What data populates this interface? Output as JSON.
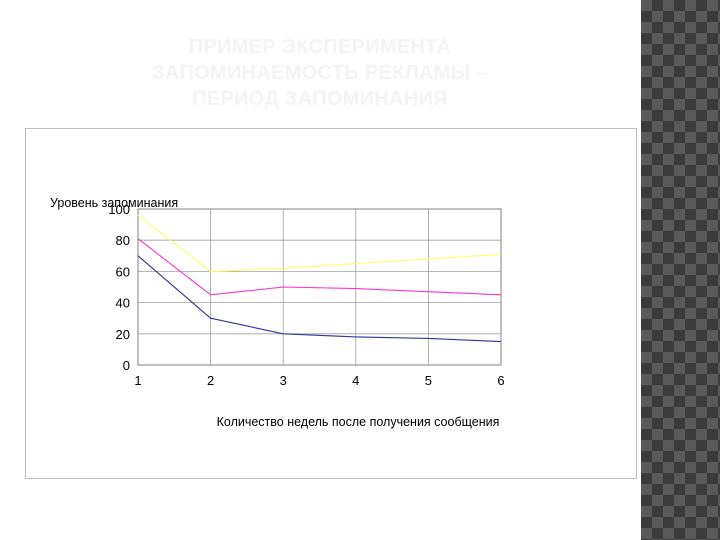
{
  "slide": {
    "title": "ПРИМЕР ЭКСПЕРИМЕНТА\nЗАПОМИНАЕМОСТЬ РЕКЛАМЫ –\nПЕРИОД ЗАПОМИНАНИЯ"
  },
  "chart_data": {
    "type": "line",
    "x": [
      1,
      2,
      3,
      4,
      5,
      6
    ],
    "xlabel": "Количество недель после получения сообщения",
    "ylabel": "Уровень запоминания",
    "ylim": [
      0,
      100
    ],
    "yticks": [
      0,
      20,
      40,
      60,
      80,
      100
    ],
    "grid": true,
    "series": [
      {
        "color": "#ffff66",
        "values": [
          96,
          60,
          62,
          65,
          68,
          71
        ]
      },
      {
        "color": "#ff33cc",
        "values": [
          81,
          45,
          50,
          49,
          47,
          45
        ]
      },
      {
        "color": "#333399",
        "values": [
          70,
          30,
          20,
          18,
          17,
          15
        ]
      }
    ]
  }
}
